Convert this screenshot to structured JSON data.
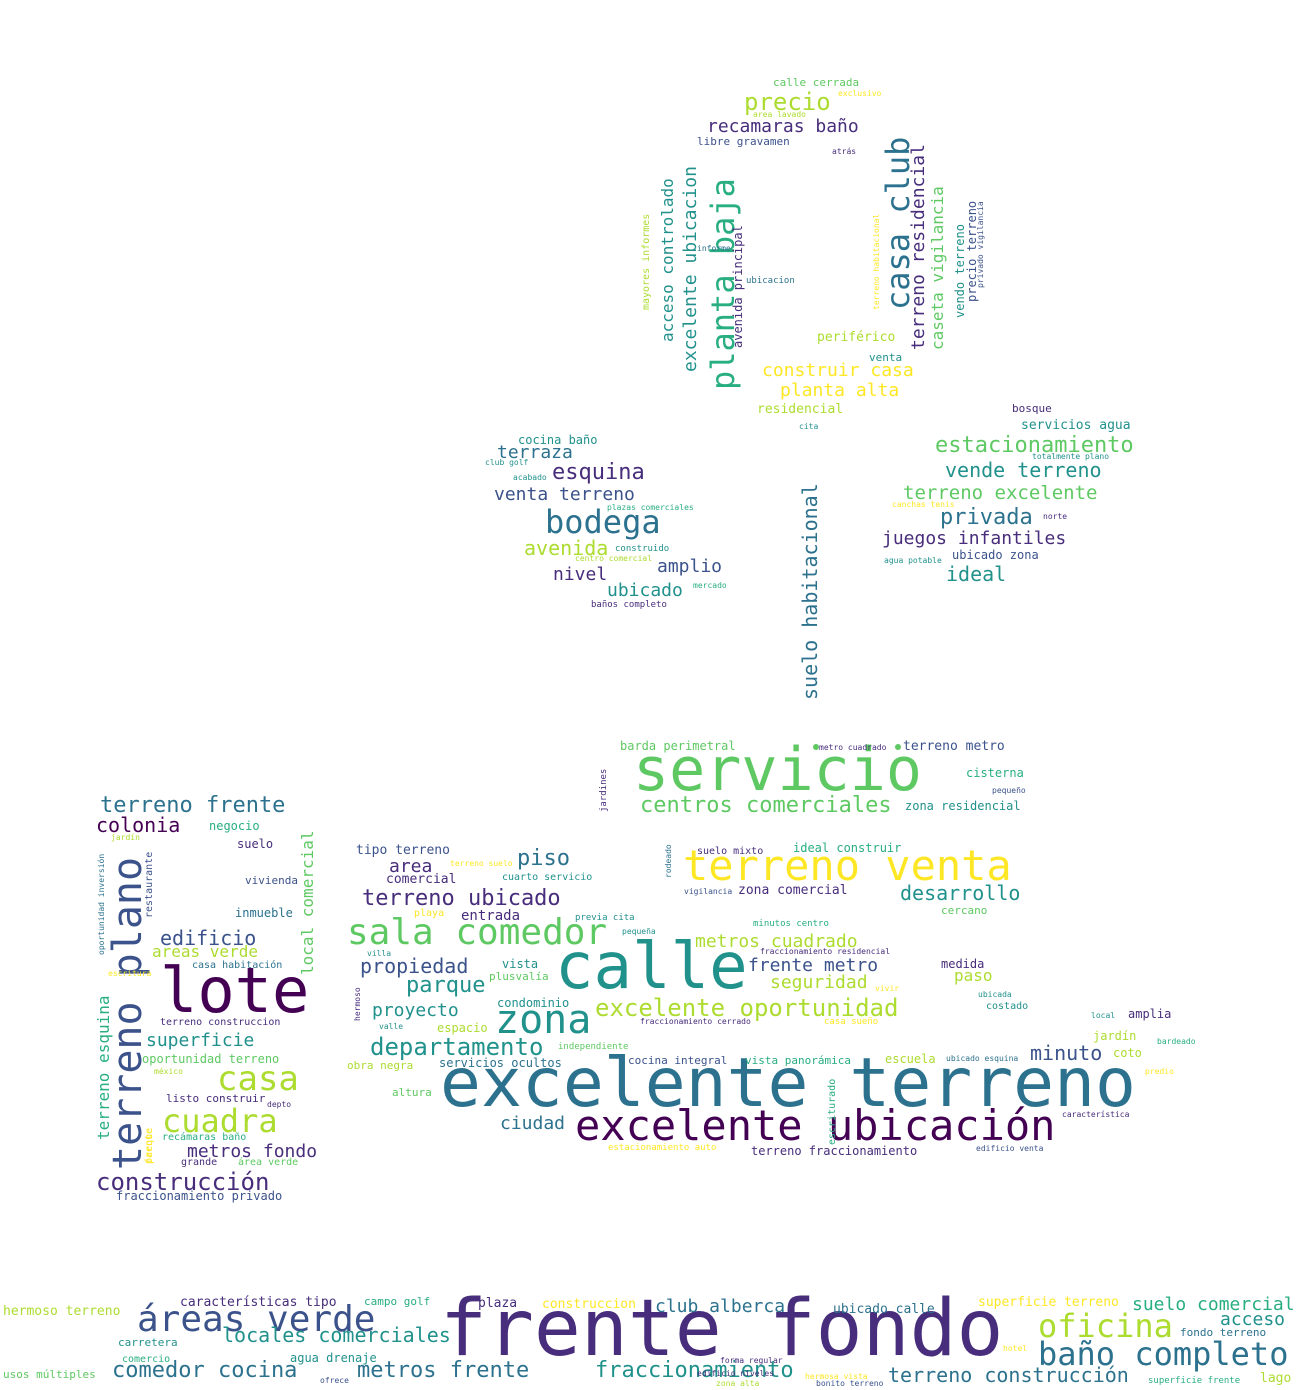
{
  "palette": {
    "deep_purple": "#440154",
    "purple": "#472d7b",
    "indigo": "#3b528b",
    "blue": "#2c728e",
    "teal": "#21918c",
    "green_teal": "#28ae80",
    "green": "#5ec962",
    "lime": "#addc30",
    "yellow": "#fde725"
  },
  "words": [
    "frente fondo",
    "excelente terreno",
    "calle",
    "servicio",
    "lote",
    "excelente ubicación",
    "terreno venta",
    "sala comedor",
    "zona",
    "terreno plano",
    "áreas verde",
    "baño completo",
    "oficina",
    "casa",
    "cuadra",
    "bodega",
    "casa club",
    "planta baja",
    "excelente oportunidad",
    "comedor cocina",
    "fraccionamiento",
    "departamento",
    "construcción",
    "terreno construcción",
    "metros frente",
    "locales comerciales",
    "centros comerciales",
    "terreno ubicado",
    "esquina",
    "propiedad",
    "piso",
    "parque",
    "desarrollo",
    "privada",
    "estacionamiento",
    "vende terreno",
    "terreno excelente",
    "juegos infantiles",
    "ideal",
    "terreno residencial",
    "caseta vigilancia",
    "suelo habitacional",
    "construir casa",
    "planta alta",
    "precio",
    "recamaras baño",
    "excelente ubicacion",
    "acceso controlado",
    "terraza",
    "venta terreno",
    "avenida",
    "nivel",
    "amplio",
    "ubicado",
    "terreno frente",
    "colonia",
    "edificio",
    "superficie",
    "metros fondo",
    "local comercial",
    "terreno esquina",
    "minuto",
    "suelo comercial",
    "club alberca",
    "frente metro",
    "metros cuadrado",
    "seguridad",
    "proyecto",
    "ciudad",
    "area",
    "paso",
    "acceso",
    "areas verde",
    "club alberca",
    "características tipo",
    "hermoso terreno",
    "plaza",
    "construccion",
    "ubicado calle",
    "superficie terreno",
    "fondo terreno",
    "usos múltiples",
    "carretera",
    "comercio",
    "agua drenaje",
    "ofrece",
    "forma regular",
    "edificio niveles",
    "zona alta",
    "hermosa vista",
    "bonito terreno",
    "superficie frente",
    "lago",
    "hotel",
    "campo golf",
    "calle cerrada",
    "exclusivo",
    "area lavado",
    "libre gravamen",
    "atrás",
    "mayores informes",
    "informe",
    "avenida principal",
    "ubicacion",
    "terreno habitacional",
    "vendo terreno",
    "precio terreno",
    "privado vigilancia",
    "periférico",
    "venta",
    "residencial",
    "bosque",
    "servicios agua",
    "cita",
    "totalmente plano",
    "cocina baño",
    "club golf",
    "acabado",
    "plazas comerciales",
    "construido",
    "centro comercial",
    "mercado",
    "baños completo",
    "canchas tenis",
    "norte",
    "ubicado zona",
    "agua potable",
    "barda perimetral",
    "metro cuadrado",
    "terreno metro",
    "cisterna",
    "pequeño",
    "zona residencial",
    "jardines",
    "rodeado",
    "suelo mixto",
    "ideal construir",
    "tipo terreno",
    "terreno suelo",
    "comercial",
    "cuarto servicio",
    "vigilancia",
    "zona comercial",
    "entrada",
    "playa",
    "previa cita",
    "pequeña",
    "minutos centro",
    "cercano",
    "fraccionamiento residencial",
    "medida",
    "vivir",
    "plusvalía",
    "ubicada",
    "costado",
    "local",
    "amplia",
    "condominio",
    "espacio",
    "valle",
    "fraccionamiento cerrado",
    "casa sueño",
    "jardín",
    "bardeado",
    "independiente",
    "cocina integral",
    "vista panorámica",
    "escuela",
    "ubicado esquina",
    "coto",
    "servicios ocultos",
    "obra negra",
    "altura",
    "predio",
    "escriturado",
    "característica",
    "estacionamiento auto",
    "terreno fraccionamiento",
    "edificio venta",
    "negocio",
    "suelo",
    "vivienda",
    "inmueble",
    "restaurante",
    "jardín",
    "oportunidad inversión",
    "escritura",
    "casa habitación",
    "hermoso",
    "villa",
    "terreno construccion",
    "oportunidad terreno",
    "méxico",
    "listo construir",
    "depto",
    "parque",
    "recámaras baño",
    "frente",
    "grande",
    "área verde",
    "fraccionamiento privado",
    "vista"
  ]
}
